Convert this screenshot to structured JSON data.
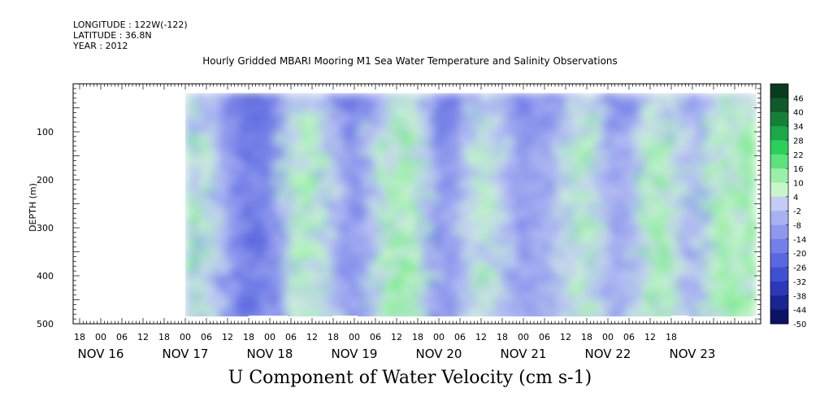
{
  "header": {
    "longitude": "LONGITUDE : 122W(-122)",
    "latitude": "LATITUDE : 36.8N",
    "year": "YEAR : 2012",
    "title": "Hourly Gridded MBARI Mooring M1 Sea Water Temperature and Salinity Observations"
  },
  "chart_data": {
    "type": "heatmap",
    "title": "Hourly Gridded MBARI Mooring M1 Sea Water Temperature and Salinity Observations",
    "variable": "U Component of Water Velocity (cm s-1)",
    "xlabel": "",
    "ylabel": "DEPTH (m)",
    "yticks": [
      100,
      200,
      300,
      400,
      500
    ],
    "ylim": [
      500,
      0
    ],
    "data_depth_range": [
      20,
      490
    ],
    "x_hour_labels": [
      "18",
      "00",
      "06",
      "12",
      "18",
      "00",
      "06",
      "12",
      "18",
      "00",
      "06",
      "12",
      "18",
      "00",
      "06",
      "12",
      "18",
      "00",
      "06",
      "12",
      "18",
      "00",
      "06",
      "12",
      "18",
      "00",
      "06",
      "12",
      "18"
    ],
    "x_day_labels": [
      "NOV 16",
      "NOV 17",
      "NOV 18",
      "NOV 19",
      "NOV 20",
      "NOV 21",
      "NOV 22",
      "NOV 23"
    ],
    "x_range_hours_from_nov16_00": [
      0,
      186
    ],
    "data_time_range": [
      "NOV 17 00",
      "NOV 23 18"
    ],
    "colorbar": {
      "levels": [
        46,
        40,
        34,
        28,
        22,
        16,
        10,
        4,
        -2,
        -8,
        -14,
        -20,
        -26,
        -32,
        -38,
        -44,
        -50
      ],
      "range": [
        -50,
        50
      ],
      "colors": [
        "#0a3b1e",
        "#0f5a2a",
        "#15803a",
        "#1aa848",
        "#2ad05a",
        "#5ee27e",
        "#9af0a8",
        "#c8f6cc",
        "#c4cbf4",
        "#a8b2f2",
        "#8e98ee",
        "#7480e8",
        "#5a68e0",
        "#4050d2",
        "#2c38b8",
        "#1a2490",
        "#0c1264"
      ]
    },
    "gaps_bottom_hours": [
      [
        42,
        53
      ],
      [
        66,
        73
      ],
      [
        162,
        167
      ]
    ],
    "time_profile_cm_s": [
      {
        "hour": 24,
        "u": -5
      },
      {
        "hour": 30,
        "u": 8
      },
      {
        "hour": 36,
        "u": -12
      },
      {
        "hour": 42,
        "u": -20
      },
      {
        "hour": 48,
        "u": -15
      },
      {
        "hour": 54,
        "u": 6
      },
      {
        "hour": 60,
        "u": 10
      },
      {
        "hour": 66,
        "u": -6
      },
      {
        "hour": 72,
        "u": -14
      },
      {
        "hour": 78,
        "u": 4
      },
      {
        "hour": 84,
        "u": 14
      },
      {
        "hour": 90,
        "u": 6
      },
      {
        "hour": 96,
        "u": -16
      },
      {
        "hour": 102,
        "u": -4
      },
      {
        "hour": 108,
        "u": 8
      },
      {
        "hour": 114,
        "u": -2
      },
      {
        "hour": 120,
        "u": -12
      },
      {
        "hour": 126,
        "u": -6
      },
      {
        "hour": 132,
        "u": 2
      },
      {
        "hour": 138,
        "u": 10
      },
      {
        "hour": 144,
        "u": -10
      },
      {
        "hour": 150,
        "u": -4
      },
      {
        "hour": 156,
        "u": 12
      },
      {
        "hour": 162,
        "u": 6
      },
      {
        "hour": 168,
        "u": -8
      },
      {
        "hour": 174,
        "u": 12
      },
      {
        "hour": 180,
        "u": 8
      },
      {
        "hour": 186,
        "u": 14
      }
    ]
  }
}
